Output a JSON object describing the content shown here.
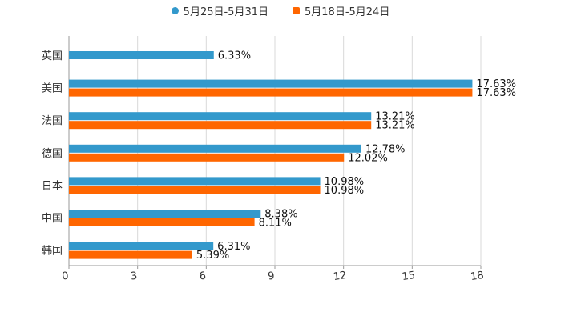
{
  "chart_data": {
    "type": "bar",
    "orientation": "horizontal",
    "title": "",
    "xlabel": "",
    "ylabel": "",
    "xlim": [
      0,
      18
    ],
    "x_ticks": [
      0,
      3,
      6,
      9,
      12,
      15,
      18
    ],
    "grid": true,
    "legend_position": "top-center",
    "categories": [
      "英国",
      "美国",
      "法国",
      "德国",
      "日本",
      "中国",
      "韩国"
    ],
    "series": [
      {
        "name": "5月25日-5月31日",
        "color": "#3399cc",
        "marker": "dot",
        "values": [
          6.33,
          17.63,
          13.21,
          12.78,
          10.98,
          8.38,
          6.31
        ],
        "labels": [
          "6.33%",
          "17.63%",
          "13.21%",
          "12.78%",
          "10.98%",
          "8.38%",
          "6.31%"
        ]
      },
      {
        "name": "5月18日-5月24日",
        "color": "#ff6600",
        "marker": "square",
        "values": [
          null,
          17.63,
          13.21,
          12.02,
          10.98,
          8.11,
          5.39
        ],
        "labels": [
          null,
          "17.63%",
          "13.21%",
          "12.02%",
          "10.98%",
          "8.11%",
          "5.39%"
        ]
      }
    ]
  }
}
